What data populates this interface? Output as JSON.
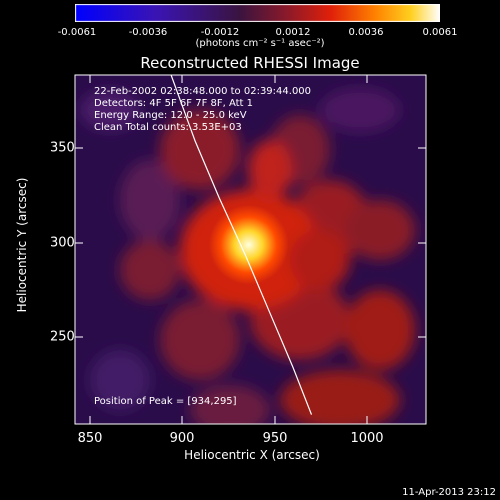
{
  "colorbar": {
    "ticks": [
      "-0.0061",
      "-0.0036",
      "-0.0012",
      "0.0012",
      "0.0036",
      "0.0061"
    ],
    "min": -0.0061,
    "max": 0.0061,
    "units_text": "(photons cm⁻² s⁻¹ asec⁻²)"
  },
  "chart_data": {
    "type": "heatmap",
    "title": "Reconstructed RHESSI Image",
    "xlabel": "Heliocentric X (arcsec)",
    "ylabel": "Heliocentric Y (arcsec)",
    "xlim": [
      840,
      1030
    ],
    "ylim": [
      200,
      385
    ],
    "x_ticks": [
      "850",
      "900",
      "950",
      "1000"
    ],
    "y_ticks": [
      "250",
      "300",
      "350"
    ],
    "peak": [
      934,
      295
    ],
    "limb_curve": [
      [
        892,
        385
      ],
      [
        905,
        350
      ],
      [
        918,
        320
      ],
      [
        932,
        290
      ],
      [
        945,
        260
      ],
      [
        958,
        230
      ],
      [
        968,
        205
      ]
    ],
    "info_lines": [
      "22-Feb-2002 02:38:48.000 to 02:39:44.000",
      "Detectors: 4F 5F 6F 7F 8F, Att 1",
      "Energy Range: 12.0 - 25.0 keV",
      "Clean    Total counts: 3.53E+03"
    ],
    "peak_text": "Position of Peak = [934,295]"
  },
  "timestamp": "11-Apr-2013 23:12"
}
